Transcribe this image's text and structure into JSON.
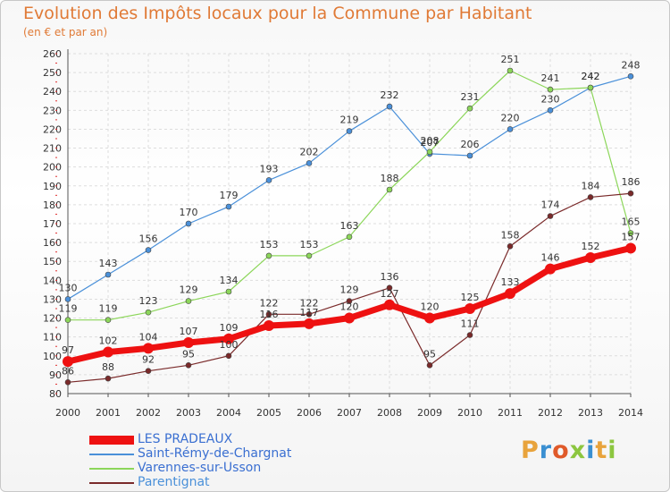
{
  "header": {
    "title": "Evolution des Impôts locaux pour la Commune par Habitant",
    "subtitle": "(en € et par an)"
  },
  "logo": {
    "text": "Proxiti",
    "colors": [
      "#e8a33c",
      "#3a8fd1",
      "#e05a2a",
      "#8cc63f",
      "#3a8fd1",
      "#e8a33c",
      "#8cc63f"
    ]
  },
  "chart_data": {
    "type": "line",
    "categories": [
      "2000",
      "2001",
      "2002",
      "2003",
      "2004",
      "2005",
      "2006",
      "2007",
      "2008",
      "2009",
      "2010",
      "2011",
      "2012",
      "2013",
      "2014"
    ],
    "yticks": [
      80,
      90,
      100,
      110,
      120,
      130,
      140,
      150,
      160,
      170,
      180,
      190,
      200,
      210,
      220,
      230,
      240,
      250,
      260
    ],
    "ylim": [
      80,
      260
    ],
    "grid": true,
    "legend_position": "bottom-left",
    "series": [
      {
        "name": "Saint-Rémy-de-Chargnat",
        "color": "#4a90d9",
        "width": 1.2,
        "marker": 3,
        "values": [
          130,
          143,
          156,
          170,
          179,
          193,
          202,
          219,
          232,
          207,
          206,
          220,
          230,
          242,
          248
        ],
        "labels": [
          "130",
          "143",
          "156",
          "170",
          "179",
          "193",
          "202",
          "219",
          "232",
          "207",
          "206",
          "220",
          "230",
          "242",
          "248"
        ]
      },
      {
        "name": "Varennes-sur-Usson",
        "color": "#8cd65a",
        "width": 1.2,
        "marker": 3,
        "values": [
          119,
          119,
          123,
          129,
          134,
          153,
          153,
          163,
          188,
          208,
          231,
          251,
          241,
          242,
          165
        ],
        "labels": [
          "119",
          "119",
          "123",
          "129",
          "134",
          "153",
          "153",
          "163",
          "188",
          "208",
          "231",
          "251",
          "241",
          "242",
          "165"
        ]
      },
      {
        "name": "Parentignat",
        "color": "#7a2a2a",
        "width": 1.2,
        "marker": 3,
        "values": [
          86,
          88,
          92,
          95,
          100,
          122,
          122,
          129,
          136,
          95,
          111,
          158,
          174,
          184,
          186
        ],
        "labels": [
          "86",
          "88",
          "92",
          "95",
          "100",
          "122",
          "122",
          "129",
          "136",
          "95",
          "111",
          "158",
          "174",
          "184",
          "186"
        ]
      },
      {
        "name": "LES PRADEAUX",
        "color": "#ee1111",
        "width": 7,
        "marker": 6,
        "values": [
          97,
          102,
          104,
          107,
          109,
          116,
          117,
          120,
          127,
          120,
          125,
          133,
          146,
          152,
          157
        ],
        "labels": [
          "97",
          "102",
          "104",
          "107",
          "109",
          "116",
          "117",
          "120",
          "127",
          "120",
          "125",
          "133",
          "146",
          "152",
          "157"
        ]
      }
    ],
    "legend_order": [
      3,
      0,
      1,
      2
    ]
  }
}
